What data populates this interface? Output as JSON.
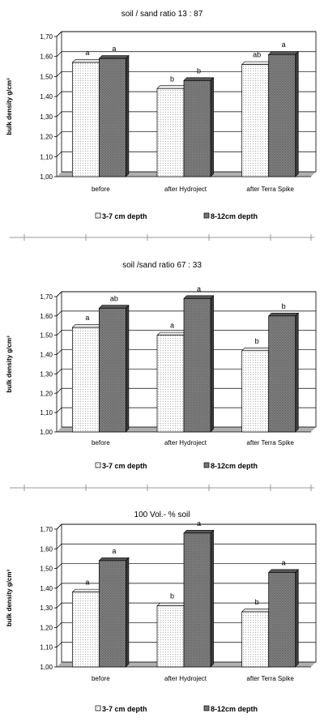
{
  "chart_data": [
    {
      "type": "bar",
      "title": "soil / sand ratio 13  : 87",
      "ylabel": "bulk density g/cm³",
      "categories": [
        "before",
        "after  Hydroject",
        "after Terra Spike"
      ],
      "ylim": [
        1.0,
        1.7
      ],
      "yticks": [
        "1,00",
        "1,10",
        "1,20",
        "1,30",
        "1,40",
        "1,50",
        "1,60",
        "1,70"
      ],
      "series": [
        {
          "name": "3-7 cm depth",
          "values": [
            1.57,
            1.44,
            1.56
          ],
          "letters": [
            "a",
            "b",
            "ab"
          ],
          "color": "#f4f4f4"
        },
        {
          "name": "8-12cm depth",
          "values": [
            1.59,
            1.48,
            1.61
          ],
          "letters": [
            "a",
            "b",
            "a"
          ],
          "color": "#7a7a7a"
        }
      ],
      "grid": true,
      "legend": "bottom"
    },
    {
      "type": "bar",
      "title": "soil /sand ratio 67 : 33",
      "ylabel": "bulk density g/cm³",
      "categories": [
        "before",
        "after  Hydroject",
        "after Terra Spike"
      ],
      "ylim": [
        1.0,
        1.7
      ],
      "yticks": [
        "1,00",
        "1,10",
        "1,20",
        "1,30",
        "1,40",
        "1,50",
        "1,60",
        "1,70"
      ],
      "series": [
        {
          "name": "3-7 cm depth",
          "values": [
            1.54,
            1.5,
            1.42
          ],
          "letters": [
            "a",
            "a",
            "b"
          ],
          "color": "#f4f4f4"
        },
        {
          "name": "8-12cm depth",
          "values": [
            1.64,
            1.69,
            1.6
          ],
          "letters": [
            "ab",
            "a",
            "b"
          ],
          "color": "#7a7a7a"
        }
      ],
      "grid": true,
      "legend": "bottom"
    },
    {
      "type": "bar",
      "title": "100 Vol.- % soil",
      "ylabel": "bulk density g/cm³",
      "categories": [
        "before",
        "after  Hydroject",
        "after Terra Spike"
      ],
      "ylim": [
        1.0,
        1.7
      ],
      "yticks": [
        "1,00",
        "1,10",
        "1,20",
        "1,30",
        "1,40",
        "1,50",
        "1,60",
        "1,70"
      ],
      "series": [
        {
          "name": "3-7 cm depth",
          "values": [
            1.38,
            1.31,
            1.28
          ],
          "letters": [
            "a",
            "b",
            "b"
          ],
          "color": "#f4f4f4"
        },
        {
          "name": "8-12cm depth",
          "values": [
            1.54,
            1.68,
            1.48
          ],
          "letters": [
            "a",
            "a",
            "a"
          ],
          "color": "#7a7a7a"
        }
      ],
      "grid": true,
      "legend": "bottom"
    }
  ]
}
